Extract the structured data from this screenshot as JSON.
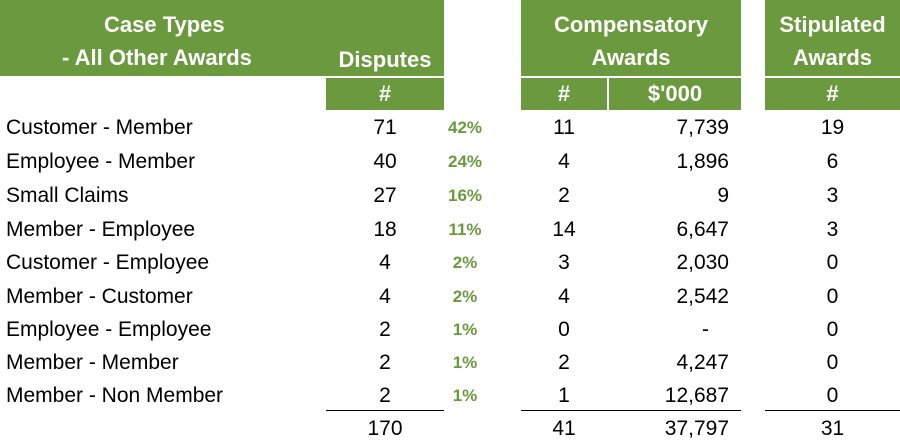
{
  "headers": {
    "case_types_line1": "Case Types",
    "case_types_line2": "- All Other Awards",
    "disputes": "Disputes",
    "disputes_unit": "#",
    "compensatory_line1": "Compensatory",
    "compensatory_line2": "Awards",
    "compensatory_count_unit": "#",
    "compensatory_amount_unit": "$'000",
    "stipulated_line1": "Stipulated",
    "stipulated_line2": "Awards",
    "stipulated_unit": "#"
  },
  "rows": [
    {
      "case_type": "Customer - Member",
      "disputes": "71",
      "pct": "42%",
      "comp_count": "11",
      "comp_amount": "7,739",
      "stip_count": "19"
    },
    {
      "case_type": "Employee - Member",
      "disputes": "40",
      "pct": "24%",
      "comp_count": "4",
      "comp_amount": "1,896",
      "stip_count": "6"
    },
    {
      "case_type": "Small Claims",
      "disputes": "27",
      "pct": "16%",
      "comp_count": "2",
      "comp_amount": "9",
      "stip_count": "3"
    },
    {
      "case_type": "Member - Employee",
      "disputes": "18",
      "pct": "11%",
      "comp_count": "14",
      "comp_amount": "6,647",
      "stip_count": "3"
    },
    {
      "case_type": "Customer - Employee",
      "disputes": "4",
      "pct": "2%",
      "comp_count": "3",
      "comp_amount": "2,030",
      "stip_count": "0"
    },
    {
      "case_type": "Member - Customer",
      "disputes": "4",
      "pct": "2%",
      "comp_count": "4",
      "comp_amount": "2,542",
      "stip_count": "0"
    },
    {
      "case_type": "Employee - Employee",
      "disputes": "2",
      "pct": "1%",
      "comp_count": "0",
      "comp_amount": "-",
      "stip_count": "0"
    },
    {
      "case_type": "Member - Member",
      "disputes": "2",
      "pct": "1%",
      "comp_count": "2",
      "comp_amount": "4,247",
      "stip_count": "0"
    },
    {
      "case_type": "Member - Non Member",
      "disputes": "2",
      "pct": "1%",
      "comp_count": "1",
      "comp_amount": "12,687",
      "stip_count": "0"
    }
  ],
  "totals": {
    "disputes": "170",
    "comp_count": "41",
    "comp_amount": "37,797",
    "stip_count": "31"
  }
}
